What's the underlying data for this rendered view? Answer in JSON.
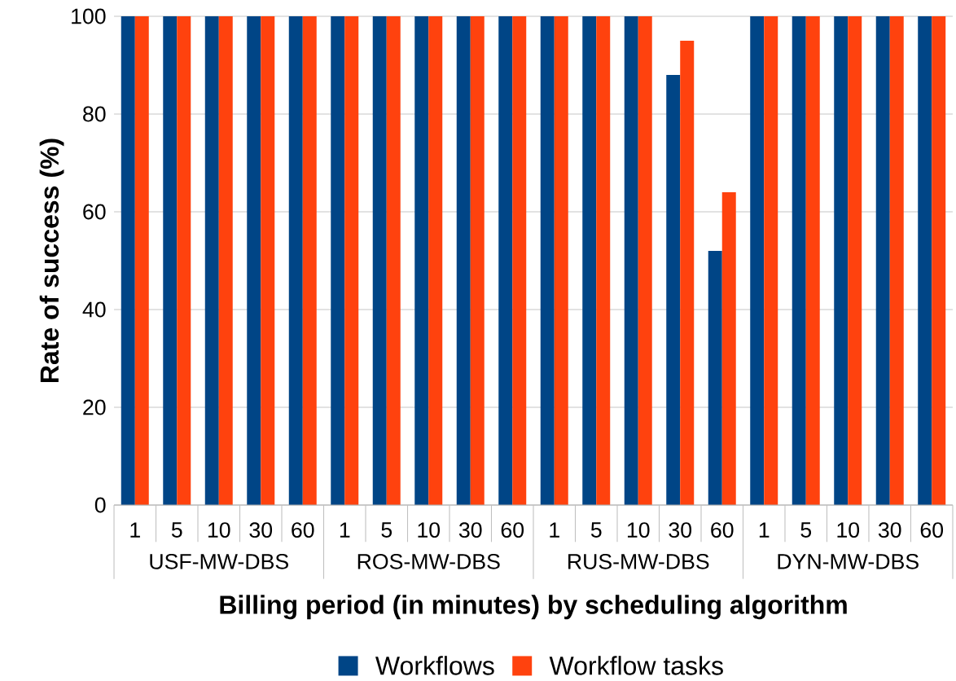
{
  "chart_data": {
    "type": "bar",
    "xlabel": "Billing period (in minutes) by scheduling algorithm",
    "ylabel": "Rate of success (%)",
    "categories": [
      "1",
      "5",
      "10",
      "30",
      "60",
      "1",
      "5",
      "10",
      "30",
      "60",
      "1",
      "5",
      "10",
      "30",
      "60",
      "1",
      "5",
      "10",
      "30",
      "60"
    ],
    "annotations": [
      "USF-MW-DBS",
      "ROS-MW-DBS",
      "RUS-MW-DBS",
      "DYN-MW-DBS"
    ],
    "series": [
      {
        "name": "Workflows",
        "color": "#004586",
        "values": [
          100,
          100,
          100,
          100,
          100,
          100,
          100,
          100,
          100,
          100,
          100,
          100,
          100,
          88,
          52,
          100,
          100,
          100,
          100,
          100
        ]
      },
      {
        "name": "Workflow tasks",
        "color": "#ff420e",
        "values": [
          100,
          100,
          100,
          100,
          100,
          100,
          100,
          100,
          100,
          100,
          100,
          100,
          100,
          95,
          64,
          100,
          100,
          100,
          100,
          100
        ]
      }
    ],
    "ylim": [
      0,
      100
    ],
    "yticks": [
      0,
      20,
      40,
      60,
      80,
      100
    ],
    "grid": "y",
    "legend": "bottom"
  }
}
